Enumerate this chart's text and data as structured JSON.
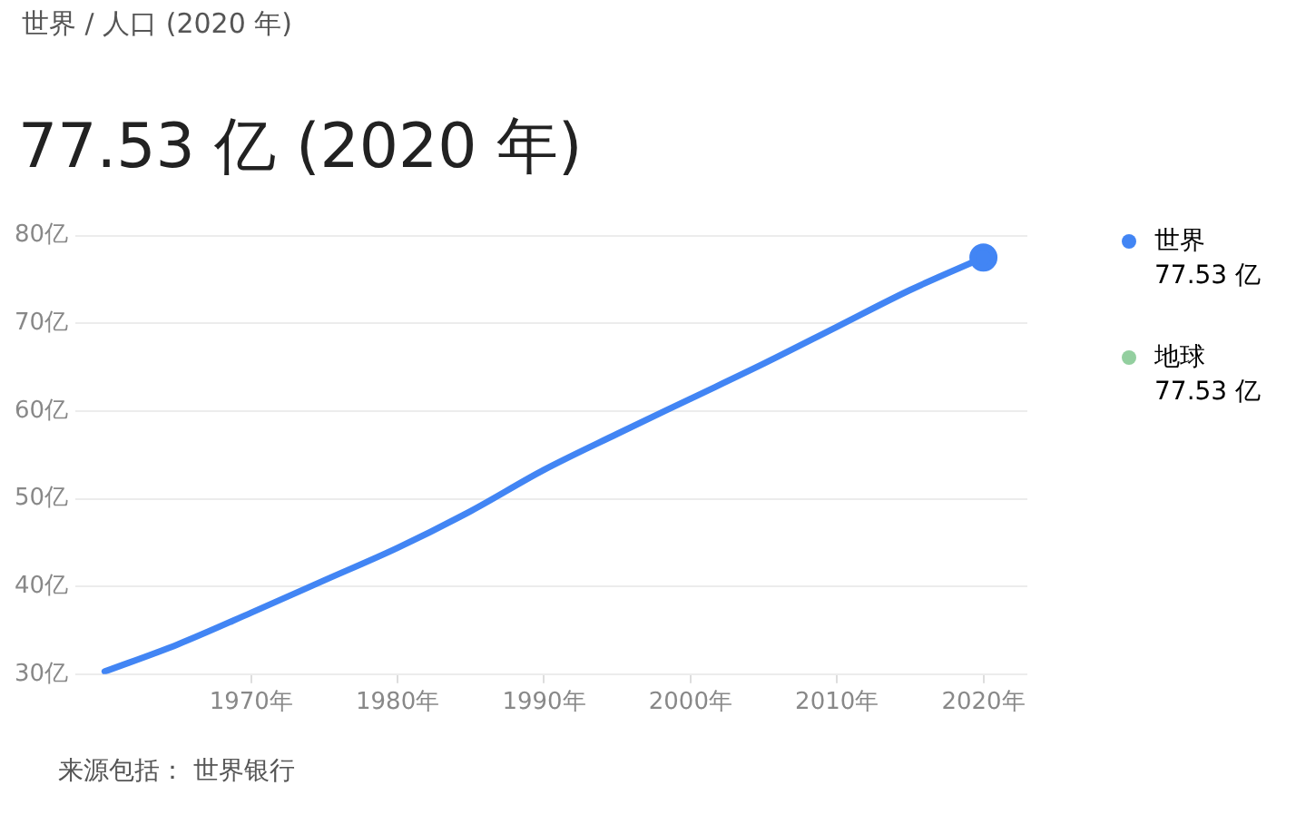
{
  "chart_data": {
    "type": "line",
    "title": "世界 / 人口 (2020 年)",
    "subtitle": "77.53 亿 (2020 年)",
    "x": [
      1960,
      1965,
      1970,
      1975,
      1980,
      1985,
      1990,
      1995,
      2000,
      2005,
      2010,
      2015,
      2020
    ],
    "series": [
      {
        "name": "世界",
        "color": "#4285f4",
        "values": [
          30.3,
          33.4,
          37.0,
          40.7,
          44.4,
          48.6,
          53.3,
          57.4,
          61.4,
          65.4,
          69.6,
          73.8,
          77.5
        ]
      },
      {
        "name": "地球",
        "color": "#93cf9f",
        "values": [
          null,
          null,
          null,
          null,
          null,
          null,
          null,
          null,
          null,
          null,
          null,
          null,
          null
        ]
      },
      {
        "type": "scatter",
        "marker": "circle",
        "color": "#4285f4",
        "x": [
          2020
        ],
        "values": [
          77.5
        ]
      }
    ],
    "xlim": [
      1958,
      2023
    ],
    "xticks": [
      {
        "value": 1970,
        "label": "1970年"
      },
      {
        "value": 1980,
        "label": "1980年"
      },
      {
        "value": 1990,
        "label": "1990年"
      },
      {
        "value": 2000,
        "label": "2000年"
      },
      {
        "value": 2010,
        "label": "2010年"
      },
      {
        "value": 2020,
        "label": "2020年"
      }
    ],
    "ylim": [
      30,
      80
    ],
    "yticks": [
      {
        "value": 30,
        "label": "30亿"
      },
      {
        "value": 40,
        "label": "40亿"
      },
      {
        "value": 50,
        "label": "50亿"
      },
      {
        "value": 60,
        "label": "60亿"
      },
      {
        "value": 70,
        "label": "70亿"
      },
      {
        "value": 80,
        "label": "80亿"
      }
    ],
    "grid": "y",
    "legend": "right",
    "marker": "none",
    "line_style": "solid",
    "annotations": [
      "77.53 亿",
      "77.53 亿",
      "来源包括： 世界银行"
    ]
  }
}
